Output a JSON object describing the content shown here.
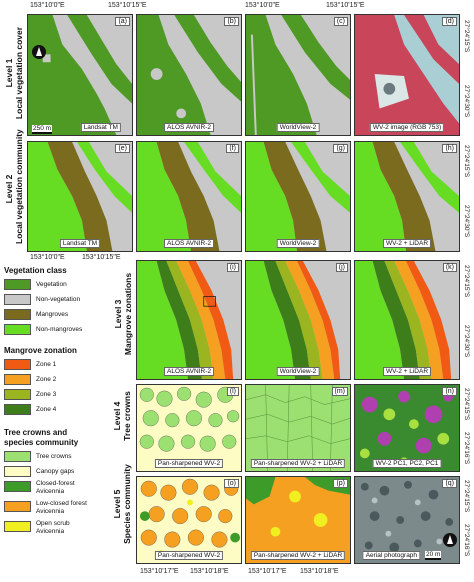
{
  "top_coords": [
    "153°10'0\"E",
    "153°10'15\"E",
    "153°10'0\"E",
    "153°10'15\"E"
  ],
  "mid_coords": [
    "153°10'0\"E",
    "153°10'15\"E"
  ],
  "bottom_coords": [
    "153°10'17\"E",
    "153°10'18\"E",
    "153°10'17\"E",
    "153°10'18\"E"
  ],
  "levels": {
    "l1": "Level 1\nLocal vegetation cover",
    "l2": "Level 2\nLocal vegetation community",
    "l3": "Level 3\nMangrove zonations",
    "l4": "Level 4\nTree crowns",
    "l5": "Level 5\nSpecies community"
  },
  "right_coords": {
    "r1a": "27°24'15\"S",
    "r1b": "27°24'30\"S",
    "r2a": "27°24'15\"S",
    "r2b": "27°24'30\"S",
    "r3a": "27°24'15\"S",
    "r3b": "27°24'30\"S",
    "r4a": "27°24'15\"S",
    "r4b": "27°24'16\"S",
    "r5a": "27°24'15\"S",
    "r5b": "27°24'16\"S"
  },
  "panels": {
    "a": {
      "label": "(a)",
      "caption": "Landsat TM",
      "scale": "250 m"
    },
    "b": {
      "label": "(b)",
      "caption": "ALOS AVNIR-2"
    },
    "c": {
      "label": "(c)",
      "caption": "WorldView-2"
    },
    "d": {
      "label": "(d)",
      "caption": "WV-2 image (RGB 753)"
    },
    "e": {
      "label": "(e)",
      "caption": "Landsat TM"
    },
    "f": {
      "label": "(f)",
      "caption": "ALOS AVNIR-2"
    },
    "g": {
      "label": "(g)",
      "caption": "WorldView-2"
    },
    "h": {
      "label": "(h)",
      "caption": "WV-2 + LiDAR"
    },
    "i": {
      "label": "(i)",
      "caption": "ALOS AVNIR-2"
    },
    "j": {
      "label": "(j)",
      "caption": "WorldView-2"
    },
    "k": {
      "label": "(k)",
      "caption": "WV-2 + LiDAR"
    },
    "l": {
      "label": "(l)",
      "caption": "Pan-sharpened WV-2"
    },
    "m": {
      "label": "(m)",
      "caption": "Pan-sharpened WV-2 + LiDAR"
    },
    "n": {
      "label": "(n)",
      "caption": "WV-2 PC1, PC2, PC1"
    },
    "o": {
      "label": "(o)",
      "caption": "Pan-sharpened WV-2"
    },
    "p": {
      "label": "(p)",
      "caption": "Pan-sharpened WV-2 + LiDAR"
    },
    "q": {
      "label": "(q)",
      "caption": "Aerial photograph",
      "scale": "20 m"
    }
  },
  "legend": {
    "veg_title": "Vegetation class",
    "veg_items": [
      {
        "label": "Vegetation",
        "color": "#4e9a25"
      },
      {
        "label": "Non-vegetation",
        "color": "#c8c8c8"
      },
      {
        "label": "Mangroves",
        "color": "#7a6b1e"
      },
      {
        "label": "Non-mangroves",
        "color": "#66dd22"
      }
    ],
    "zone_title": "Mangrove zonation",
    "zone_items": [
      {
        "label": "Zone 1",
        "color": "#f05a14"
      },
      {
        "label": "Zone 2",
        "color": "#f5a020"
      },
      {
        "label": "Zone 3",
        "color": "#9ab520"
      },
      {
        "label": "Zone 4",
        "color": "#3d7d1a"
      }
    ],
    "tree_title": "Tree crowns and\nspecies community",
    "tree_items": [
      {
        "label": "Tree crowns",
        "color": "#9be070"
      },
      {
        "label": "Canopy gaps",
        "color": "#fcfcc4"
      },
      {
        "label": "Closed-forest\nAvicennia",
        "color": "#3d9b2a"
      },
      {
        "label": "Low-closed forest\nAvicennia",
        "color": "#f5a020"
      },
      {
        "label": "Open scrub\nAvicennia",
        "color": "#f0f020"
      }
    ]
  }
}
